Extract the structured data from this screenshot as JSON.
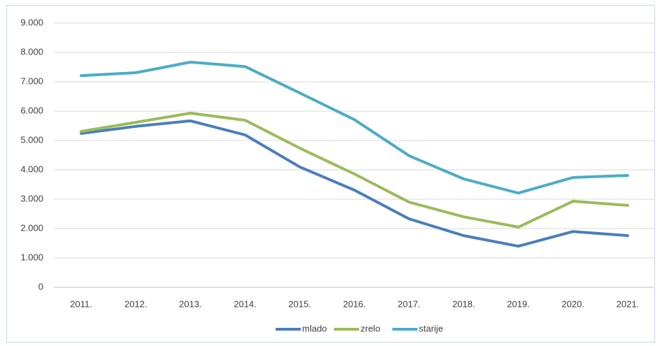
{
  "chart_data": {
    "type": "line",
    "categories": [
      "2011.",
      "2012.",
      "2013.",
      "2014.",
      "2015.",
      "2016.",
      "2017.",
      "2018.",
      "2019.",
      "2020.",
      "2021."
    ],
    "series": [
      {
        "name": "mlado",
        "color": "#4a7ebb",
        "values": [
          5240,
          5480,
          5670,
          5190,
          4100,
          3310,
          2330,
          1760,
          1400,
          1900,
          1760
        ]
      },
      {
        "name": "zrelo",
        "color": "#9bbb59",
        "values": [
          5310,
          5620,
          5930,
          5690,
          4740,
          3860,
          2900,
          2400,
          2050,
          2930,
          2790
        ]
      },
      {
        "name": "starije",
        "color": "#4bacc6",
        "values": [
          7210,
          7310,
          7670,
          7520,
          6620,
          5710,
          4480,
          3690,
          3210,
          3740,
          3810
        ]
      }
    ],
    "ylim": [
      0,
      9000
    ],
    "yticks": [
      0,
      {
        "value": 1000,
        "label": "1.000"
      },
      {
        "value": 2000,
        "label": "2.000"
      },
      {
        "value": 3000,
        "label": "3.000"
      },
      {
        "value": 4000,
        "label": "4.000"
      },
      {
        "value": 5000,
        "label": "5.000"
      },
      {
        "value": 6000,
        "label": "6.000"
      },
      {
        "value": 7000,
        "label": "7.000"
      },
      {
        "value": 8000,
        "label": "8.000"
      },
      {
        "value": 9000,
        "label": "9.000"
      }
    ],
    "grid": true,
    "legend": "bottom"
  }
}
